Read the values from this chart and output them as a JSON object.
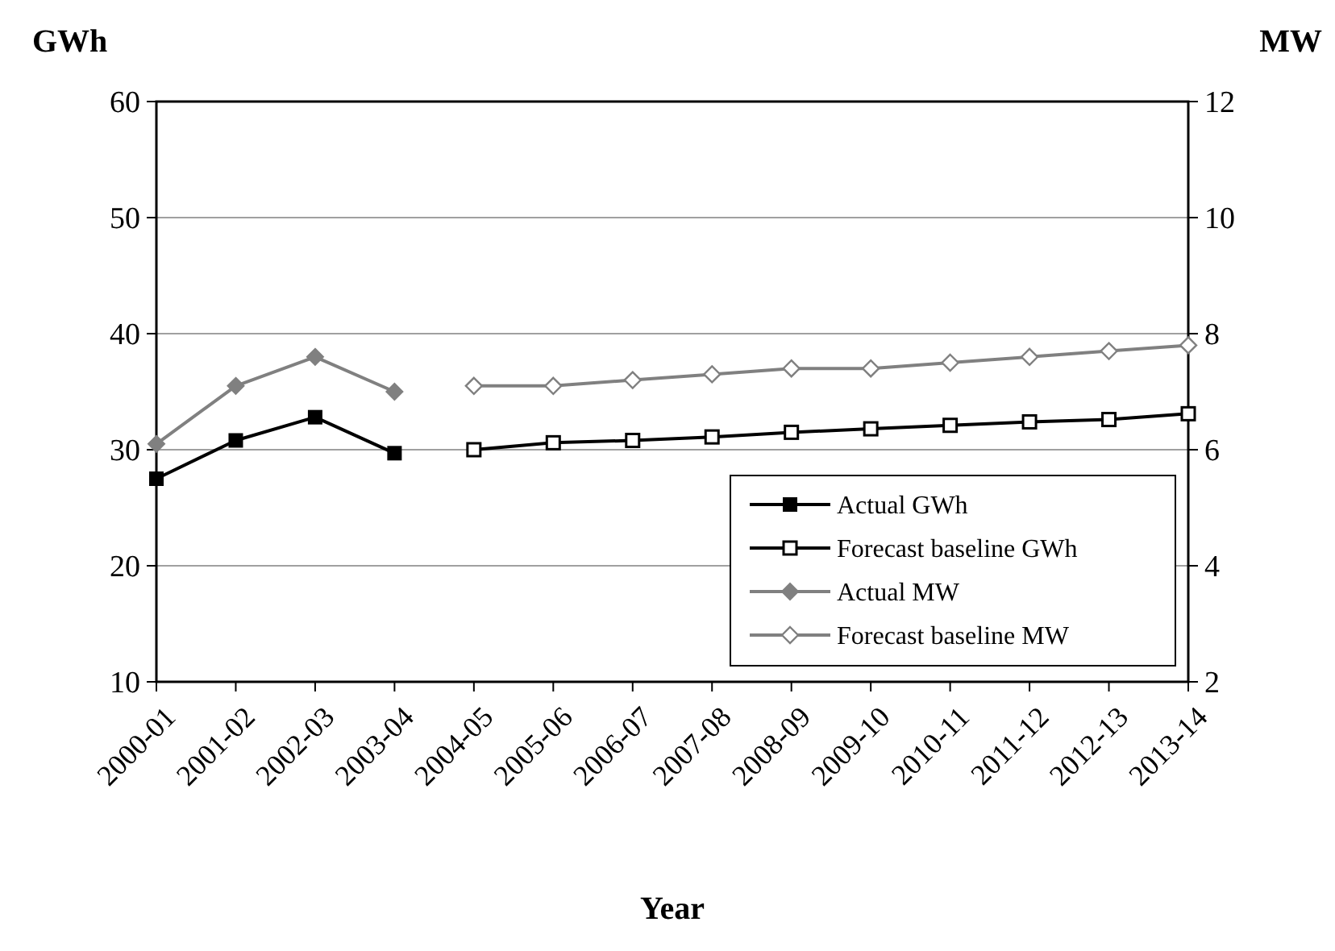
{
  "chart_data": {
    "type": "line",
    "xlabel": "Year",
    "ylabel": "GWh",
    "y2label": "MW",
    "categories": [
      "2000-01",
      "2001-02",
      "2002-03",
      "2003-04",
      "2004-05",
      "2005-06",
      "2006-07",
      "2007-08",
      "2008-09",
      "2009-10",
      "2010-11",
      "2011-12",
      "2012-13",
      "2013-14"
    ],
    "series": [
      {
        "name": "Actual GWh",
        "color": "#000000",
        "marker": "square",
        "values": [
          27.5,
          30.8,
          32.8,
          29.7,
          null,
          null,
          null,
          null,
          null,
          null,
          null,
          null,
          null,
          null
        ]
      },
      {
        "name": "Forecast baseline GWh",
        "color": "#000000",
        "marker": "square-open",
        "values": [
          null,
          null,
          null,
          null,
          30.0,
          30.6,
          30.8,
          31.1,
          31.5,
          31.8,
          32.1,
          32.4,
          32.6,
          33.1
        ]
      },
      {
        "name": "Actual MW",
        "color": "#808080",
        "marker": "diamond",
        "axis": "y2",
        "values": [
          6.1,
          7.1,
          7.6,
          7.0,
          null,
          null,
          null,
          null,
          null,
          null,
          null,
          null,
          null,
          null
        ]
      },
      {
        "name": "Forecast baseline MW",
        "color": "#808080",
        "marker": "diamond-open",
        "axis": "y2",
        "values": [
          null,
          null,
          null,
          null,
          7.1,
          7.1,
          7.2,
          7.3,
          7.4,
          7.4,
          7.5,
          7.6,
          7.7,
          7.8
        ]
      }
    ],
    "ylim": [
      10,
      60
    ],
    "yticks": [
      10,
      20,
      30,
      40,
      50,
      60
    ],
    "y2lim": [
      2,
      12
    ],
    "y2ticks": [
      2,
      4,
      6,
      8,
      10,
      12
    ],
    "grid": "y",
    "legend": "bottom right"
  }
}
